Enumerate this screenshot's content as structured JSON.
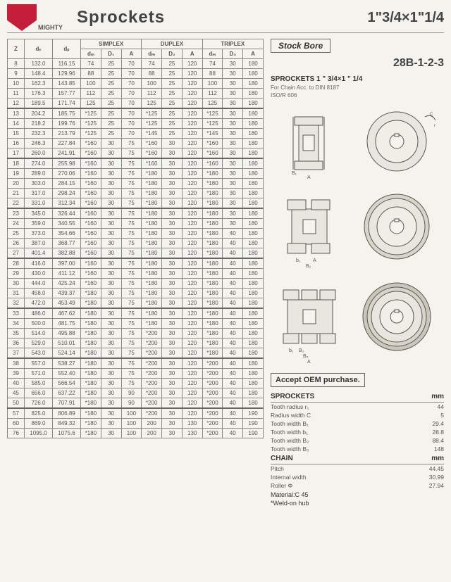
{
  "header": {
    "brand": "MIGHTY",
    "title": "Sprockets",
    "spec": "1\"3/4×1\"1/4"
  },
  "right": {
    "stockbore": "Stock Bore",
    "model": "28B-1-2-3",
    "subtitle": "SPROCKETS 1 \" 3/4×1 \" 1/4",
    "line1": "For Chain  Acc. to  DIN 8187",
    "line2": "ISO/R 606",
    "oem": "Accept OEM purchase.",
    "sprockets_hdr": "SPROCKETS",
    "mm": "mm",
    "sprocket_rows": [
      {
        "k": "Tooth radius r₁",
        "v": "44"
      },
      {
        "k": "Radius width C",
        "v": "5"
      },
      {
        "k": "Tooth width B₁",
        "v": "29.4"
      },
      {
        "k": "Tooth width b₁",
        "v": "28.8"
      },
      {
        "k": "Tooth width B₂",
        "v": "88.4"
      },
      {
        "k": "Tooth width B₃",
        "v": "148"
      }
    ],
    "chain_hdr": "CHAIN",
    "chain_rows": [
      {
        "k": "Pitch",
        "v": "44.45"
      },
      {
        "k": "Internal width",
        "v": "30.99"
      },
      {
        "k": "Roller Φ",
        "v": "27.94"
      }
    ],
    "material": "Material:C 45",
    "weldon": "*Weld-on hub"
  },
  "table": {
    "group_headers": [
      "SIMPLEX",
      "DUPLEX",
      "TRIPLEX"
    ],
    "col_headers": [
      "Z",
      "dₑ",
      "dₚ",
      "dₘ",
      "D₁",
      "A",
      "dₘ",
      "D₂",
      "A",
      "dₘ",
      "D₃",
      "A"
    ],
    "sections": [
      [
        [
          "8",
          "132.0",
          "116.15",
          "74",
          "25",
          "70",
          "74",
          "25",
          "120",
          "74",
          "30",
          "180"
        ],
        [
          "9",
          "148.4",
          "129.96",
          "88",
          "25",
          "70",
          "88",
          "25",
          "120",
          "88",
          "30",
          "180"
        ],
        [
          "10",
          "162.3",
          "143.85",
          "100",
          "25",
          "70",
          "100",
          "25",
          "120",
          "100",
          "30",
          "180"
        ],
        [
          "11",
          "176.3",
          "157.77",
          "112",
          "25",
          "70",
          "112",
          "25",
          "120",
          "112",
          "30",
          "180"
        ],
        [
          "12",
          "189.5",
          "171.74",
          "125",
          "25",
          "70",
          "125",
          "25",
          "120",
          "125",
          "30",
          "180"
        ]
      ],
      [
        [
          "13",
          "204.2",
          "185.75",
          "*125",
          "25",
          "70",
          "*125",
          "25",
          "120",
          "*125",
          "30",
          "180"
        ],
        [
          "14",
          "218.2",
          "199.76",
          "*125",
          "25",
          "70",
          "*125",
          "25",
          "120",
          "*125",
          "30",
          "180"
        ],
        [
          "15",
          "232.3",
          "213.79",
          "*125",
          "25",
          "70",
          "*145",
          "25",
          "120",
          "*145",
          "30",
          "180"
        ],
        [
          "16",
          "246.3",
          "227.84",
          "*160",
          "30",
          "75",
          "*160",
          "30",
          "120",
          "*160",
          "30",
          "180"
        ],
        [
          "17",
          "260.0",
          "241.91",
          "*160",
          "30",
          "75",
          "*160",
          "30",
          "120",
          "*160",
          "30",
          "180"
        ]
      ],
      [
        [
          "18",
          "274.0",
          "255.98",
          "*160",
          "30",
          "75",
          "*160",
          "30",
          "120",
          "*160",
          "30",
          "180"
        ],
        [
          "19",
          "289.0",
          "270.06",
          "*160",
          "30",
          "75",
          "*180",
          "30",
          "120",
          "*180",
          "30",
          "180"
        ],
        [
          "20",
          "303.0",
          "284.15",
          "*160",
          "30",
          "75",
          "*180",
          "30",
          "120",
          "*180",
          "30",
          "180"
        ],
        [
          "21",
          "317.0",
          "298.24",
          "*160",
          "30",
          "75",
          "*180",
          "30",
          "120",
          "*180",
          "30",
          "180"
        ],
        [
          "22",
          "331.0",
          "312.34",
          "*160",
          "30",
          "75",
          "*180",
          "30",
          "120",
          "*180",
          "30",
          "180"
        ]
      ],
      [
        [
          "23",
          "345.0",
          "326.44",
          "*160",
          "30",
          "75",
          "*180",
          "30",
          "120",
          "*180",
          "30",
          "180"
        ],
        [
          "24",
          "359.0",
          "340.55",
          "*160",
          "30",
          "75",
          "*180",
          "30",
          "120",
          "*180",
          "30",
          "180"
        ],
        [
          "25",
          "373.0",
          "354.66",
          "*160",
          "30",
          "75",
          "*180",
          "30",
          "120",
          "*180",
          "40",
          "180"
        ],
        [
          "26",
          "387.0",
          "368.77",
          "*160",
          "30",
          "75",
          "*180",
          "30",
          "120",
          "*180",
          "40",
          "180"
        ],
        [
          "27",
          "401.4",
          "382.88",
          "*160",
          "30",
          "75",
          "*180",
          "30",
          "120",
          "*180",
          "40",
          "180"
        ]
      ],
      [
        [
          "28",
          "416.0",
          "397.00",
          "*160",
          "30",
          "75",
          "*180",
          "30",
          "120",
          "*180",
          "40",
          "180"
        ],
        [
          "29",
          "430.0",
          "411.12",
          "*160",
          "30",
          "75",
          "*180",
          "30",
          "120",
          "*180",
          "40",
          "180"
        ],
        [
          "30",
          "444.0",
          "425.24",
          "*160",
          "30",
          "75",
          "*180",
          "30",
          "120",
          "*180",
          "40",
          "180"
        ],
        [
          "31",
          "458.0",
          "439.37",
          "*180",
          "30",
          "75",
          "*180",
          "30",
          "120",
          "*180",
          "40",
          "180"
        ],
        [
          "32",
          "472.0",
          "453.49",
          "*180",
          "30",
          "75",
          "*180",
          "30",
          "120",
          "*180",
          "40",
          "180"
        ]
      ],
      [
        [
          "33",
          "486.0",
          "467.62",
          "*180",
          "30",
          "75",
          "*180",
          "30",
          "120",
          "*180",
          "40",
          "180"
        ],
        [
          "34",
          "500.0",
          "481.75",
          "*180",
          "30",
          "75",
          "*180",
          "30",
          "120",
          "*180",
          "40",
          "180"
        ],
        [
          "35",
          "514.0",
          "495.88",
          "*180",
          "30",
          "75",
          "*200",
          "30",
          "120",
          "*180",
          "40",
          "180"
        ],
        [
          "36",
          "529.0",
          "510.01",
          "*180",
          "30",
          "75",
          "*200",
          "30",
          "120",
          "*180",
          "40",
          "180"
        ],
        [
          "37",
          "543.0",
          "524.14",
          "*180",
          "30",
          "75",
          "*200",
          "30",
          "120",
          "*180",
          "40",
          "180"
        ]
      ],
      [
        [
          "38",
          "557.0",
          "538.27",
          "*180",
          "30",
          "75",
          "*200",
          "30",
          "120",
          "*200",
          "40",
          "180"
        ],
        [
          "39",
          "571.0",
          "552.40",
          "*180",
          "30",
          "75",
          "*200",
          "30",
          "120",
          "*200",
          "40",
          "180"
        ],
        [
          "40",
          "585.0",
          "566.54",
          "*180",
          "30",
          "75",
          "*200",
          "30",
          "120",
          "*200",
          "40",
          "180"
        ],
        [
          "45",
          "656.0",
          "637.22",
          "*180",
          "30",
          "90",
          "*200",
          "30",
          "120",
          "*200",
          "40",
          "180"
        ],
        [
          "50",
          "726.0",
          "707.91",
          "*180",
          "30",
          "90",
          "*200",
          "30",
          "120",
          "*200",
          "40",
          "180"
        ]
      ],
      [
        [
          "57",
          "825.0",
          "806.89",
          "*180",
          "30",
          "100",
          "*200",
          "30",
          "120",
          "*200",
          "40",
          "190"
        ],
        [
          "60",
          "869.0",
          "849.32",
          "*180",
          "30",
          "100",
          "200",
          "30",
          "130",
          "*200",
          "40",
          "190"
        ],
        [
          "76",
          "1095.0",
          "1075.6",
          "*180",
          "30",
          "100",
          "200",
          "30",
          "130",
          "*200",
          "40",
          "190"
        ]
      ]
    ]
  }
}
